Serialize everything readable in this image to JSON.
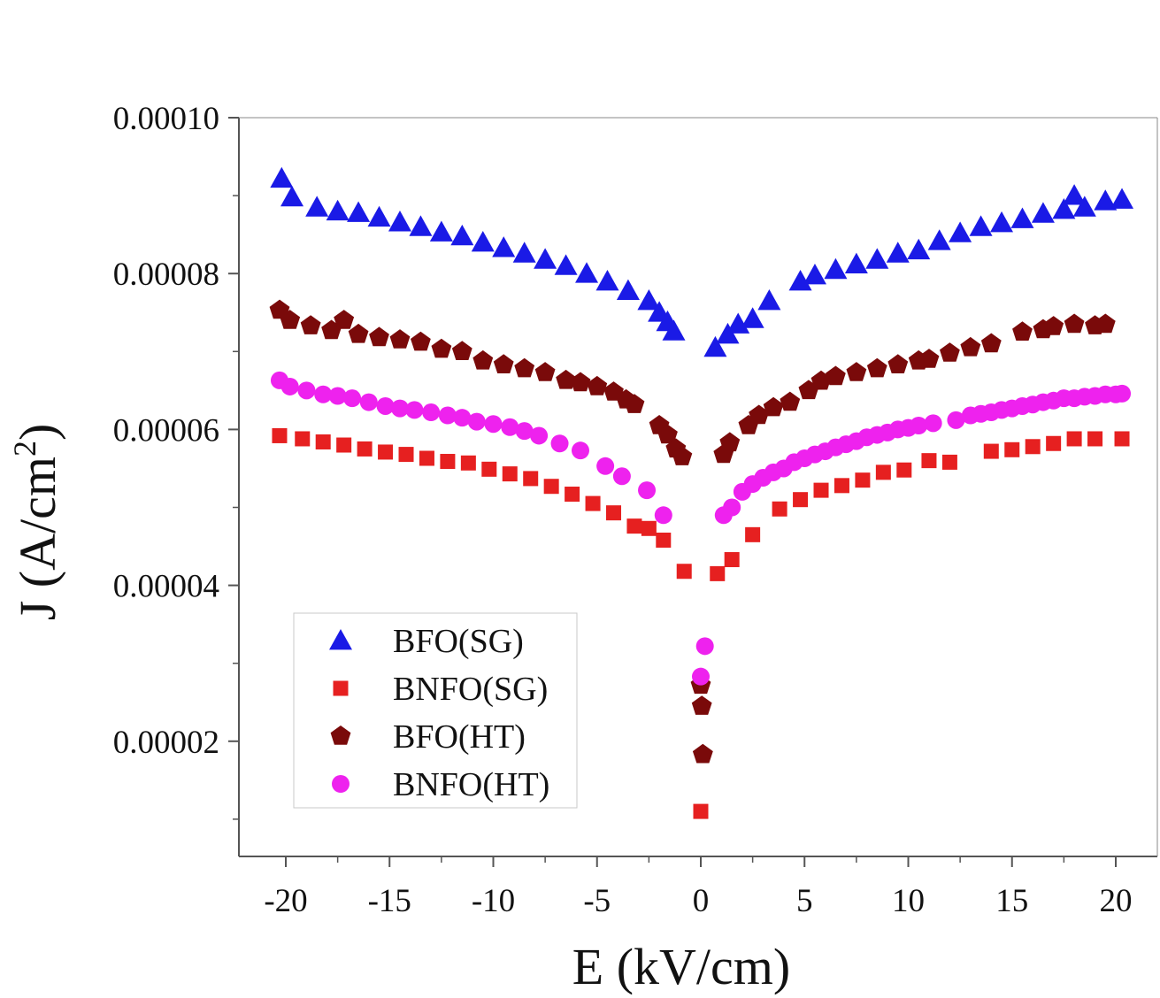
{
  "chart_data": {
    "type": "scatter",
    "xlabel": "E (kV/cm)",
    "ylabel_main": "J (A/cm",
    "ylabel_sup": "2",
    "ylabel_close": ")",
    "xlim": [
      -22,
      22
    ],
    "ylim": [
      5e-06,
      0.0001
    ],
    "x_ticks": [
      -20,
      -15,
      -10,
      -5,
      0,
      5,
      10,
      15,
      20
    ],
    "x_tick_labels": [
      "-20",
      "-15",
      "-10",
      "-5",
      "0",
      "5",
      "10",
      "15",
      "20"
    ],
    "y_ticks": [
      2e-05,
      4e-05,
      6e-05,
      8e-05,
      0.0001
    ],
    "y_tick_labels": [
      "0.00002",
      "0.00004",
      "0.00006",
      "0.00008",
      "0.00010"
    ],
    "grid": false,
    "legend_position": "bottom-left",
    "series": [
      {
        "name": "BFO(SG)",
        "marker": "triangle",
        "color": "#1a1ae6",
        "x": [
          -20.2,
          -19.7,
          -18.5,
          -17.5,
          -16.5,
          -15.5,
          -14.5,
          -13.5,
          -12.5,
          -11.5,
          -10.5,
          -9.5,
          -8.5,
          -7.5,
          -6.5,
          -5.5,
          -4.5,
          -3.5,
          -2.5,
          -2.0,
          -1.6,
          -1.3,
          0.7,
          1.3,
          1.8,
          2.5,
          3.3,
          4.8,
          5.5,
          6.5,
          7.5,
          8.5,
          9.5,
          10.5,
          11.5,
          12.5,
          13.5,
          14.5,
          15.5,
          16.5,
          17.5,
          18.0,
          18.5,
          19.5,
          20.3
        ],
        "y": [
          9.22e-05,
          8.98e-05,
          8.85e-05,
          8.8e-05,
          8.78e-05,
          8.72e-05,
          8.66e-05,
          8.6e-05,
          8.53e-05,
          8.48e-05,
          8.4e-05,
          8.33e-05,
          8.26e-05,
          8.18e-05,
          8.1e-05,
          8e-05,
          7.9e-05,
          7.78e-05,
          7.65e-05,
          7.5e-05,
          7.38e-05,
          7.26e-05,
          7.05e-05,
          7.22e-05,
          7.35e-05,
          7.42e-05,
          7.65e-05,
          7.9e-05,
          7.98e-05,
          8.05e-05,
          8.12e-05,
          8.18e-05,
          8.26e-05,
          8.3e-05,
          8.42e-05,
          8.52e-05,
          8.6e-05,
          8.65e-05,
          8.7e-05,
          8.77e-05,
          8.82e-05,
          9e-05,
          8.85e-05,
          8.93e-05,
          8.95e-05
        ]
      },
      {
        "name": "BNFO(SG)",
        "marker": "square",
        "color": "#e62020",
        "x": [
          -20.3,
          -19.2,
          -18.2,
          -17.2,
          -16.2,
          -15.2,
          -14.2,
          -13.2,
          -12.2,
          -11.2,
          -10.2,
          -9.2,
          -8.2,
          -7.2,
          -6.2,
          -5.2,
          -4.2,
          -3.2,
          -2.5,
          -1.8,
          -0.8,
          0.0,
          0.8,
          1.5,
          2.5,
          3.8,
          4.8,
          5.8,
          6.8,
          7.8,
          8.8,
          9.8,
          11.0,
          12.0,
          14.0,
          15.0,
          16.0,
          17.0,
          18.0,
          19.0,
          20.3
        ],
        "y": [
          5.92e-05,
          5.88e-05,
          5.84e-05,
          5.8e-05,
          5.75e-05,
          5.71e-05,
          5.68e-05,
          5.63e-05,
          5.59e-05,
          5.57e-05,
          5.49e-05,
          5.43e-05,
          5.37e-05,
          5.27e-05,
          5.17e-05,
          5.05e-05,
          4.93e-05,
          4.76e-05,
          4.73e-05,
          4.58e-05,
          4.18e-05,
          1.1e-05,
          4.15e-05,
          4.33e-05,
          4.65e-05,
          4.98e-05,
          5.1e-05,
          5.22e-05,
          5.28e-05,
          5.35e-05,
          5.45e-05,
          5.48e-05,
          5.6e-05,
          5.58e-05,
          5.72e-05,
          5.74e-05,
          5.78e-05,
          5.82e-05,
          5.88e-05,
          5.88e-05,
          5.88e-05
        ]
      },
      {
        "name": "BFO(HT)",
        "marker": "pentagon",
        "color": "#7a0a0a",
        "x": [
          -20.3,
          -19.8,
          -18.8,
          -17.8,
          -17.2,
          -16.5,
          -15.5,
          -14.5,
          -13.5,
          -12.5,
          -11.5,
          -10.5,
          -9.5,
          -8.5,
          -7.5,
          -6.5,
          -5.8,
          -5.0,
          -4.2,
          -3.6,
          -3.2,
          -2.0,
          -1.6,
          -1.2,
          -0.9,
          0.0,
          0.05,
          0.1,
          1.1,
          1.4,
          2.3,
          2.8,
          3.5,
          4.3,
          5.2,
          5.8,
          6.5,
          7.5,
          8.5,
          9.5,
          10.5,
          11.0,
          12.0,
          13.0,
          14.0,
          15.5,
          16.5,
          17.0,
          18.0,
          19.0,
          19.5
        ],
        "y": [
          7.53e-05,
          7.4e-05,
          7.33e-05,
          7.27e-05,
          7.4e-05,
          7.22e-05,
          7.18e-05,
          7.15e-05,
          7.12e-05,
          7.03e-05,
          7e-05,
          6.88e-05,
          6.83e-05,
          6.78e-05,
          6.73e-05,
          6.63e-05,
          6.6e-05,
          6.55e-05,
          6.48e-05,
          6.38e-05,
          6.32e-05,
          6.05e-05,
          5.93e-05,
          5.75e-05,
          5.65e-05,
          2.72e-05,
          2.45e-05,
          1.83e-05,
          5.68e-05,
          5.83e-05,
          6.05e-05,
          6.18e-05,
          6.28e-05,
          6.35e-05,
          6.5e-05,
          6.62e-05,
          6.68e-05,
          6.73e-05,
          6.78e-05,
          6.83e-05,
          6.88e-05,
          6.9e-05,
          6.98e-05,
          7.05e-05,
          7.1e-05,
          7.25e-05,
          7.28e-05,
          7.32e-05,
          7.35e-05,
          7.33e-05,
          7.35e-05
        ]
      },
      {
        "name": "BNFO(HT)",
        "marker": "circle",
        "color": "#ee22ee",
        "x": [
          -20.3,
          -19.8,
          -19.0,
          -18.2,
          -17.5,
          -16.8,
          -16.0,
          -15.2,
          -14.5,
          -13.8,
          -13.0,
          -12.2,
          -11.5,
          -10.8,
          -10.0,
          -9.2,
          -8.5,
          -7.8,
          -6.8,
          -5.8,
          -4.6,
          -3.8,
          -2.6,
          -1.8,
          0.0,
          0.2,
          1.1,
          1.5,
          2.0,
          2.5,
          3.0,
          3.5,
          4.0,
          4.5,
          5.0,
          5.5,
          6.0,
          6.5,
          7.0,
          7.5,
          8.0,
          8.5,
          9.0,
          9.5,
          10.0,
          10.5,
          11.2,
          12.3,
          13.0,
          13.5,
          14.0,
          14.5,
          15.0,
          15.5,
          16.0,
          16.5,
          17.0,
          17.5,
          18.0,
          18.5,
          19.0,
          19.5,
          20.0,
          20.3
        ],
        "y": [
          6.63e-05,
          6.55e-05,
          6.5e-05,
          6.45e-05,
          6.43e-05,
          6.4e-05,
          6.35e-05,
          6.3e-05,
          6.27e-05,
          6.25e-05,
          6.22e-05,
          6.18e-05,
          6.15e-05,
          6.1e-05,
          6.07e-05,
          6.03e-05,
          5.98e-05,
          5.92e-05,
          5.82e-05,
          5.73e-05,
          5.53e-05,
          5.4e-05,
          5.22e-05,
          4.9e-05,
          2.83e-05,
          3.22e-05,
          4.9e-05,
          5e-05,
          5.2e-05,
          5.3e-05,
          5.38e-05,
          5.45e-05,
          5.5e-05,
          5.58e-05,
          5.63e-05,
          5.68e-05,
          5.72e-05,
          5.77e-05,
          5.81e-05,
          5.85e-05,
          5.9e-05,
          5.93e-05,
          5.96e-05,
          6e-05,
          6.02e-05,
          6.05e-05,
          6.08e-05,
          6.12e-05,
          6.18e-05,
          6.2e-05,
          6.22e-05,
          6.25e-05,
          6.27e-05,
          6.3e-05,
          6.32e-05,
          6.35e-05,
          6.37e-05,
          6.4e-05,
          6.4e-05,
          6.42e-05,
          6.43e-05,
          6.45e-05,
          6.45e-05,
          6.46e-05
        ]
      }
    ]
  }
}
